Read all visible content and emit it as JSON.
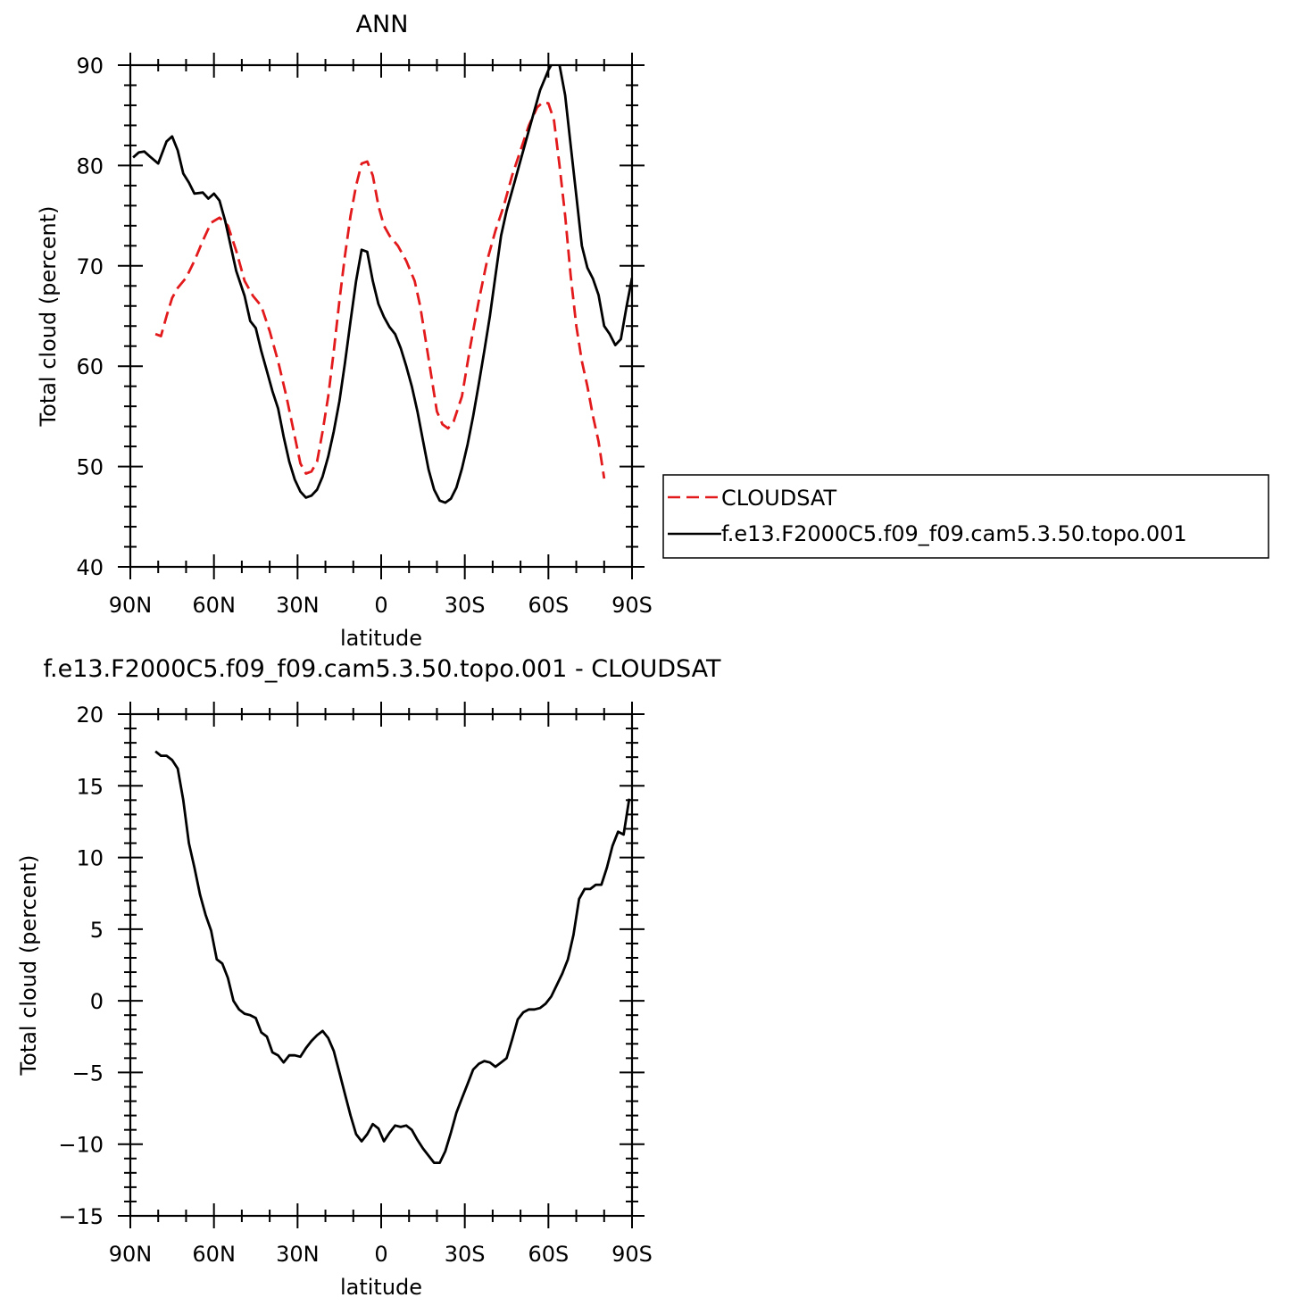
{
  "chart_data": [
    {
      "type": "line",
      "title": "ANN",
      "xlabel": "latitude",
      "ylabel": "Total cloud (percent)",
      "xlim": [
        90,
        -90
      ],
      "ylim": [
        40,
        90
      ],
      "xticks": [
        90,
        60,
        30,
        0,
        -30,
        -60,
        -90
      ],
      "xtick_labels": [
        "90N",
        "60N",
        "30N",
        "0",
        "30S",
        "60S",
        "90S"
      ],
      "yticks": [
        40,
        50,
        60,
        70,
        80,
        90
      ],
      "ytick_labels": [
        "40",
        "50",
        "60",
        "70",
        "80",
        "90"
      ],
      "grid": false,
      "legend": "right",
      "series": [
        {
          "name": "CLOUDSAT",
          "color": "#e31a1c",
          "dash": "dashed",
          "points": [
            [
              81,
              63.2
            ],
            [
              79,
              63.0
            ],
            [
              77,
              65.0
            ],
            [
              75,
              66.8
            ],
            [
              73,
              67.8
            ],
            [
              70,
              68.8
            ],
            [
              67,
              70.5
            ],
            [
              64,
              72.5
            ],
            [
              61,
              74.3
            ],
            [
              58,
              74.8
            ],
            [
              55,
              74.0
            ],
            [
              52,
              71.5
            ],
            [
              49,
              68.5
            ],
            [
              46,
              67.0
            ],
            [
              43,
              66.0
            ],
            [
              40,
              63.5
            ],
            [
              37,
              60.5
            ],
            [
              34,
              57.0
            ],
            [
              31,
              53.0
            ],
            [
              29,
              50.3
            ],
            [
              27,
              49.3
            ],
            [
              25,
              49.5
            ],
            [
              23,
              50.5
            ],
            [
              21,
              53.5
            ],
            [
              19,
              57.0
            ],
            [
              17,
              61.5
            ],
            [
              15,
              66.5
            ],
            [
              13,
              71.0
            ],
            [
              11,
              75.0
            ],
            [
              9,
              78.0
            ],
            [
              7,
              80.2
            ],
            [
              5,
              80.4
            ],
            [
              3,
              79.0
            ],
            [
              1,
              76.0
            ],
            [
              -1,
              74.0
            ],
            [
              -3,
              73.0
            ],
            [
              -6,
              72.0
            ],
            [
              -9,
              70.5
            ],
            [
              -12,
              68.5
            ],
            [
              -14,
              66.0
            ],
            [
              -16,
              62.5
            ],
            [
              -18,
              59.0
            ],
            [
              -20,
              55.5
            ],
            [
              -22,
              54.2
            ],
            [
              -24,
              53.8
            ],
            [
              -26,
              54.5
            ],
            [
              -29,
              57.0
            ],
            [
              -32,
              62.0
            ],
            [
              -35,
              66.5
            ],
            [
              -38,
              70.5
            ],
            [
              -41,
              73.5
            ],
            [
              -44,
              76.0
            ],
            [
              -47,
              79.0
            ],
            [
              -50,
              81.5
            ],
            [
              -53,
              84.0
            ],
            [
              -56,
              85.8
            ],
            [
              -58,
              86.3
            ],
            [
              -60,
              86.2
            ],
            [
              -62,
              84.5
            ],
            [
              -64,
              80.0
            ],
            [
              -66,
              75.0
            ],
            [
              -68,
              69.0
            ],
            [
              -70,
              64.0
            ],
            [
              -72,
              60.5
            ],
            [
              -74,
              58.0
            ],
            [
              -76,
              55.0
            ],
            [
              -78,
              52.5
            ],
            [
              -80,
              48.8
            ]
          ]
        },
        {
          "name": "f.e13.F2000C5.f09_f09.cam5.3.50.topo.001",
          "color": "#000000",
          "dash": "solid",
          "points": [
            [
              89,
              80.8
            ],
            [
              87,
              81.3
            ],
            [
              85,
              81.4
            ],
            [
              83,
              80.9
            ],
            [
              80,
              80.2
            ],
            [
              77,
              82.4
            ],
            [
              75,
              82.9
            ],
            [
              73,
              81.5
            ],
            [
              71,
              79.2
            ],
            [
              69,
              78.3
            ],
            [
              67,
              77.2
            ],
            [
              64,
              77.3
            ],
            [
              62,
              76.7
            ],
            [
              60,
              77.2
            ],
            [
              58,
              76.5
            ],
            [
              56,
              74.5
            ],
            [
              54,
              72.0
            ],
            [
              52,
              69.5
            ],
            [
              49,
              67.0
            ],
            [
              47,
              64.5
            ],
            [
              45,
              63.8
            ],
            [
              43,
              61.5
            ],
            [
              41,
              59.5
            ],
            [
              39,
              57.5
            ],
            [
              37,
              55.8
            ],
            [
              35,
              53.0
            ],
            [
              33,
              50.5
            ],
            [
              31,
              48.7
            ],
            [
              29,
              47.5
            ],
            [
              27,
              46.9
            ],
            [
              25,
              47.1
            ],
            [
              23,
              47.7
            ],
            [
              21,
              49.0
            ],
            [
              19,
              51.0
            ],
            [
              17,
              53.5
            ],
            [
              15,
              56.5
            ],
            [
              13,
              60.3
            ],
            [
              11,
              64.5
            ],
            [
              9,
              68.5
            ],
            [
              7,
              71.6
            ],
            [
              5,
              71.4
            ],
            [
              3,
              68.5
            ],
            [
              1,
              66.2
            ],
            [
              -1,
              64.9
            ],
            [
              -3,
              63.9
            ],
            [
              -5,
              63.2
            ],
            [
              -7,
              61.8
            ],
            [
              -9,
              60.0
            ],
            [
              -11,
              58.0
            ],
            [
              -13,
              55.5
            ],
            [
              -15,
              52.6
            ],
            [
              -17,
              49.7
            ],
            [
              -19,
              47.7
            ],
            [
              -21,
              46.6
            ],
            [
              -23,
              46.4
            ],
            [
              -25,
              46.8
            ],
            [
              -27,
              47.9
            ],
            [
              -29,
              49.8
            ],
            [
              -31,
              52.2
            ],
            [
              -33,
              55.0
            ],
            [
              -35,
              58.2
            ],
            [
              -37,
              61.5
            ],
            [
              -39,
              65.0
            ],
            [
              -41,
              69.0
            ],
            [
              -43,
              73.0
            ],
            [
              -45,
              75.5
            ],
            [
              -48,
              78.5
            ],
            [
              -51,
              81.5
            ],
            [
              -54,
              84.5
            ],
            [
              -57,
              87.5
            ],
            [
              -60,
              89.5
            ],
            [
              -62,
              90.5
            ],
            [
              -64,
              90.0
            ],
            [
              -66,
              87.0
            ],
            [
              -68,
              82.0
            ],
            [
              -70,
              77.0
            ],
            [
              -72,
              72.0
            ],
            [
              -74,
              69.8
            ],
            [
              -76,
              68.7
            ],
            [
              -78,
              67.1
            ],
            [
              -80,
              64.0
            ],
            [
              -82,
              63.2
            ],
            [
              -84,
              62.1
            ],
            [
              -86,
              62.7
            ],
            [
              -88,
              65.9
            ],
            [
              -90,
              68.8
            ]
          ]
        }
      ]
    },
    {
      "type": "line",
      "title": "f.e13.F2000C5.f09_f09.cam5.3.50.topo.001 - CLOUDSAT",
      "xlabel": "latitude",
      "ylabel": "Total cloud (percent)",
      "xlim": [
        90,
        -90
      ],
      "ylim": [
        -15,
        20
      ],
      "xticks": [
        90,
        60,
        30,
        0,
        -30,
        -60,
        -90
      ],
      "xtick_labels": [
        "90N",
        "60N",
        "30N",
        "0",
        "30S",
        "60S",
        "90S"
      ],
      "yticks": [
        -15,
        -10,
        -5,
        0,
        5,
        10,
        15,
        20
      ],
      "ytick_labels": [
        "−15",
        "−10",
        "−5",
        "0",
        "5",
        "10",
        "15",
        "20"
      ],
      "grid": false,
      "series": [
        {
          "color": "#000000",
          "dash": "solid",
          "points": [
            [
              81,
              17.4
            ],
            [
              79,
              17.1
            ],
            [
              77,
              17.1
            ],
            [
              75,
              16.8
            ],
            [
              73,
              16.2
            ],
            [
              71,
              14.0
            ],
            [
              69,
              11.0
            ],
            [
              67,
              9.3
            ],
            [
              65,
              7.4
            ],
            [
              63,
              6.0
            ],
            [
              61,
              4.9
            ],
            [
              59,
              2.9
            ],
            [
              57,
              2.6
            ],
            [
              55,
              1.6
            ],
            [
              53,
              0.0
            ],
            [
              51,
              -0.6
            ],
            [
              49,
              -0.9
            ],
            [
              47,
              -1.0
            ],
            [
              45,
              -1.2
            ],
            [
              43,
              -2.2
            ],
            [
              41,
              -2.5
            ],
            [
              39,
              -3.6
            ],
            [
              37,
              -3.8
            ],
            [
              35,
              -4.3
            ],
            [
              33,
              -3.8
            ],
            [
              31,
              -3.8
            ],
            [
              29,
              -3.9
            ],
            [
              27,
              -3.3
            ],
            [
              25,
              -2.8
            ],
            [
              23,
              -2.4
            ],
            [
              21,
              -2.1
            ],
            [
              19,
              -2.6
            ],
            [
              17,
              -3.5
            ],
            [
              15,
              -5.0
            ],
            [
              13,
              -6.5
            ],
            [
              11,
              -8.0
            ],
            [
              9,
              -9.3
            ],
            [
              7,
              -9.8
            ],
            [
              5,
              -9.3
            ],
            [
              3,
              -8.6
            ],
            [
              1,
              -8.9
            ],
            [
              -1,
              -9.8
            ],
            [
              -3,
              -9.2
            ],
            [
              -5,
              -8.7
            ],
            [
              -7,
              -8.8
            ],
            [
              -9,
              -8.7
            ],
            [
              -11,
              -9.0
            ],
            [
              -13,
              -9.7
            ],
            [
              -15,
              -10.3
            ],
            [
              -17,
              -10.8
            ],
            [
              -19,
              -11.3
            ],
            [
              -21,
              -11.3
            ],
            [
              -23,
              -10.5
            ],
            [
              -25,
              -9.2
            ],
            [
              -27,
              -7.8
            ],
            [
              -29,
              -6.8
            ],
            [
              -31,
              -5.8
            ],
            [
              -33,
              -4.8
            ],
            [
              -35,
              -4.4
            ],
            [
              -37,
              -4.2
            ],
            [
              -39,
              -4.3
            ],
            [
              -41,
              -4.6
            ],
            [
              -43,
              -4.3
            ],
            [
              -45,
              -4.0
            ],
            [
              -47,
              -2.7
            ],
            [
              -49,
              -1.3
            ],
            [
              -51,
              -0.8
            ],
            [
              -53,
              -0.6
            ],
            [
              -55,
              -0.6
            ],
            [
              -57,
              -0.5
            ],
            [
              -59,
              -0.2
            ],
            [
              -61,
              0.3
            ],
            [
              -63,
              1.1
            ],
            [
              -65,
              1.9
            ],
            [
              -67,
              2.9
            ],
            [
              -69,
              4.6
            ],
            [
              -71,
              7.1
            ],
            [
              -73,
              7.8
            ],
            [
              -75,
              7.8
            ],
            [
              -77,
              8.1
            ],
            [
              -79,
              8.1
            ],
            [
              -81,
              9.3
            ],
            [
              -83,
              10.8
            ],
            [
              -85,
              11.8
            ],
            [
              -87,
              11.6
            ],
            [
              -89,
              14.1
            ]
          ]
        }
      ]
    }
  ]
}
